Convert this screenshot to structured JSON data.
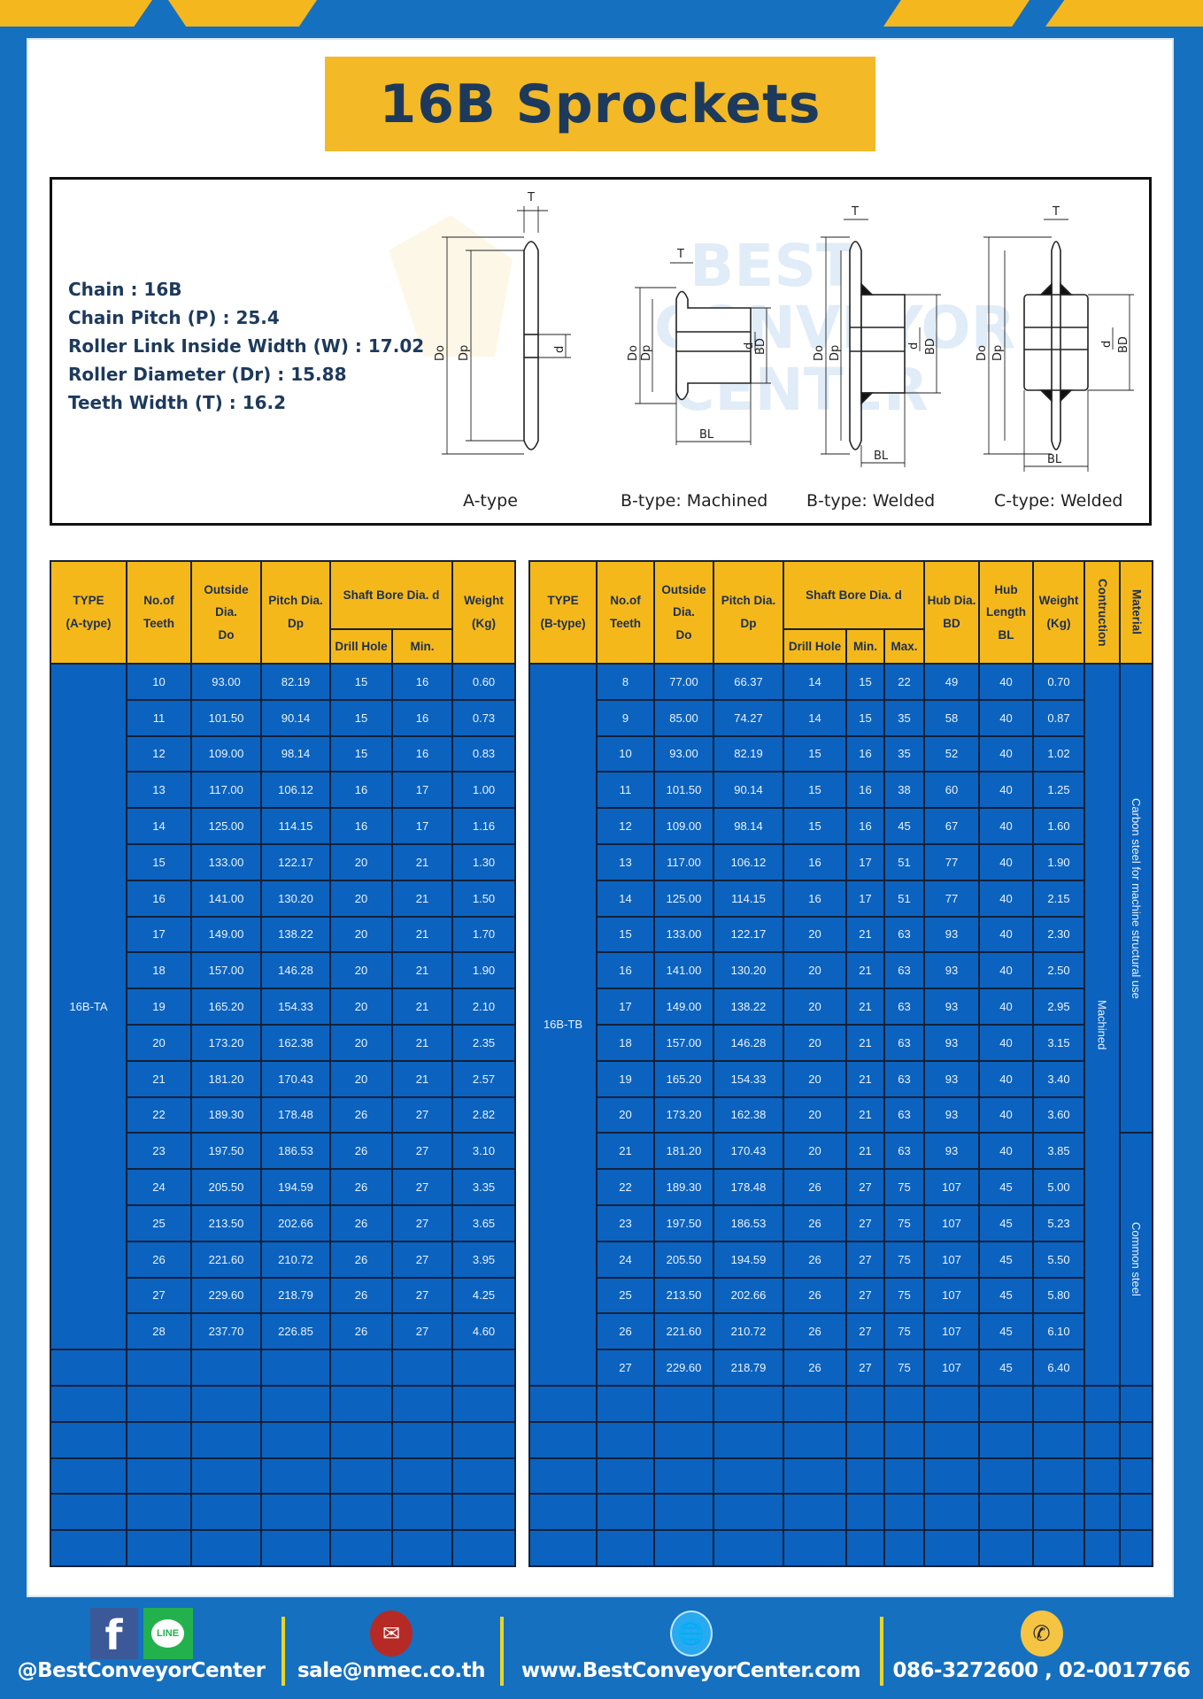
{
  "title": "16B Sprockets",
  "colors": {
    "background_blue": "#1570c0",
    "accent_yellow": "#f3b927",
    "cell_blue": "#0b63bf",
    "title_text": "#1d3a5c"
  },
  "specs": [
    "Chain  :  16B",
    "Chain Pitch (P)  :  25.4",
    "Roller Link Inside Width (W)  :  17.02",
    "Roller Diameter (Dr)  : 15.88",
    "Teeth Width (T)  :  16.2"
  ],
  "diagram": {
    "labels": [
      "A-type",
      "B-type: Machined",
      "B-type: Welded",
      "C-type: Welded"
    ],
    "dims": {
      "T": "T",
      "Do": "Do",
      "Dp": "Dp",
      "d": "d",
      "BD": "BD",
      "BL": "BL"
    },
    "watermark": [
      "BEST",
      "CONVEYOR",
      "CENTER"
    ]
  },
  "table_a": {
    "headers": {
      "type": "TYPE",
      "type_sub": "(A-type)",
      "teeth": "No.of",
      "teeth_sub": "Teeth",
      "outside": "Outside",
      "outside_mid": "Dia.",
      "outside_sub": "Do",
      "pitch": "Pitch Dia.",
      "pitch_sub": "Dp",
      "bore": "Shaft Bore Dia. d",
      "drill": "Drill Hole",
      "min": "Min.",
      "weight": "Weight",
      "weight_sub": "(Kg)"
    },
    "type": "16B-TA",
    "rows": [
      [
        "10",
        "93.00",
        "82.19",
        "15",
        "16",
        "0.60"
      ],
      [
        "11",
        "101.50",
        "90.14",
        "15",
        "16",
        "0.73"
      ],
      [
        "12",
        "109.00",
        "98.14",
        "15",
        "16",
        "0.83"
      ],
      [
        "13",
        "117.00",
        "106.12",
        "16",
        "17",
        "1.00"
      ],
      [
        "14",
        "125.00",
        "114.15",
        "16",
        "17",
        "1.16"
      ],
      [
        "15",
        "133.00",
        "122.17",
        "20",
        "21",
        "1.30"
      ],
      [
        "16",
        "141.00",
        "130.20",
        "20",
        "21",
        "1.50"
      ],
      [
        "17",
        "149.00",
        "138.22",
        "20",
        "21",
        "1.70"
      ],
      [
        "18",
        "157.00",
        "146.28",
        "20",
        "21",
        "1.90"
      ],
      [
        "19",
        "165.20",
        "154.33",
        "20",
        "21",
        "2.10"
      ],
      [
        "20",
        "173.20",
        "162.38",
        "20",
        "21",
        "2.35"
      ],
      [
        "21",
        "181.20",
        "170.43",
        "20",
        "21",
        "2.57"
      ],
      [
        "22",
        "189.30",
        "178.48",
        "26",
        "27",
        "2.82"
      ],
      [
        "23",
        "197.50",
        "186.53",
        "26",
        "27",
        "3.10"
      ],
      [
        "24",
        "205.50",
        "194.59",
        "26",
        "27",
        "3.35"
      ],
      [
        "25",
        "213.50",
        "202.66",
        "26",
        "27",
        "3.65"
      ],
      [
        "26",
        "221.60",
        "210.72",
        "26",
        "27",
        "3.95"
      ],
      [
        "27",
        "229.60",
        "218.79",
        "26",
        "27",
        "4.25"
      ],
      [
        "28",
        "237.70",
        "226.85",
        "26",
        "27",
        "4.60"
      ]
    ]
  },
  "table_b": {
    "headers": {
      "type": "TYPE",
      "type_sub": "(B-type)",
      "teeth": "No.of",
      "teeth_sub": "Teeth",
      "outside": "Outside",
      "outside_mid": "Dia.",
      "outside_sub": "Do",
      "pitch": "Pitch Dia.",
      "pitch_sub": "Dp",
      "bore": "Shaft Bore Dia. d",
      "drill": "Drill Hole",
      "min": "Min.",
      "max": "Max.",
      "hub_dia": "Hub Dia.",
      "hub_dia_sub": "BD",
      "hub_len": "Hub",
      "hub_len_mid": "Length",
      "hub_len_sub": "BL",
      "weight": "Weight",
      "weight_sub": "(Kg)",
      "construction": "Contruction",
      "material": "Material"
    },
    "type": "16B-TB",
    "construction": "Machined",
    "material_groups": [
      {
        "label": "Carbon steel for machine structural use",
        "teeth": "8-20"
      },
      {
        "label": "Common steel",
        "teeth": "21-27"
      }
    ],
    "rows": [
      [
        "8",
        "77.00",
        "66.37",
        "14",
        "15",
        "22",
        "49",
        "40",
        "0.70"
      ],
      [
        "9",
        "85.00",
        "74.27",
        "14",
        "15",
        "35",
        "58",
        "40",
        "0.87"
      ],
      [
        "10",
        "93.00",
        "82.19",
        "15",
        "16",
        "35",
        "52",
        "40",
        "1.02"
      ],
      [
        "11",
        "101.50",
        "90.14",
        "15",
        "16",
        "38",
        "60",
        "40",
        "1.25"
      ],
      [
        "12",
        "109.00",
        "98.14",
        "15",
        "16",
        "45",
        "67",
        "40",
        "1.60"
      ],
      [
        "13",
        "117.00",
        "106.12",
        "16",
        "17",
        "51",
        "77",
        "40",
        "1.90"
      ],
      [
        "14",
        "125.00",
        "114.15",
        "16",
        "17",
        "51",
        "77",
        "40",
        "2.15"
      ],
      [
        "15",
        "133.00",
        "122.17",
        "20",
        "21",
        "63",
        "93",
        "40",
        "2.30"
      ],
      [
        "16",
        "141.00",
        "130.20",
        "20",
        "21",
        "63",
        "93",
        "40",
        "2.50"
      ],
      [
        "17",
        "149.00",
        "138.22",
        "20",
        "21",
        "63",
        "93",
        "40",
        "2.95"
      ],
      [
        "18",
        "157.00",
        "146.28",
        "20",
        "21",
        "63",
        "93",
        "40",
        "3.15"
      ],
      [
        "19",
        "165.20",
        "154.33",
        "20",
        "21",
        "63",
        "93",
        "40",
        "3.40"
      ],
      [
        "20",
        "173.20",
        "162.38",
        "20",
        "21",
        "63",
        "93",
        "40",
        "3.60"
      ],
      [
        "21",
        "181.20",
        "170.43",
        "20",
        "21",
        "63",
        "93",
        "40",
        "3.85"
      ],
      [
        "22",
        "189.30",
        "178.48",
        "26",
        "27",
        "75",
        "107",
        "45",
        "5.00"
      ],
      [
        "23",
        "197.50",
        "186.53",
        "26",
        "27",
        "75",
        "107",
        "45",
        "5.23"
      ],
      [
        "24",
        "205.50",
        "194.59",
        "26",
        "27",
        "75",
        "107",
        "45",
        "5.50"
      ],
      [
        "25",
        "213.50",
        "202.66",
        "26",
        "27",
        "75",
        "107",
        "45",
        "5.80"
      ],
      [
        "26",
        "221.60",
        "210.72",
        "26",
        "27",
        "75",
        "107",
        "45",
        "6.10"
      ],
      [
        "27",
        "229.60",
        "218.79",
        "26",
        "27",
        "75",
        "107",
        "45",
        "6.40"
      ]
    ]
  },
  "footer": {
    "social": "@BestConveyorCenter",
    "email": "sale@nmec.co.th",
    "website": "www.BestConveyorCenter.com",
    "phone": "086-3272600 , 02-0017766",
    "line_label": "LINE",
    "icons": [
      "facebook-icon",
      "line-icon",
      "mail-icon",
      "globe-icon",
      "phone-icon"
    ]
  }
}
